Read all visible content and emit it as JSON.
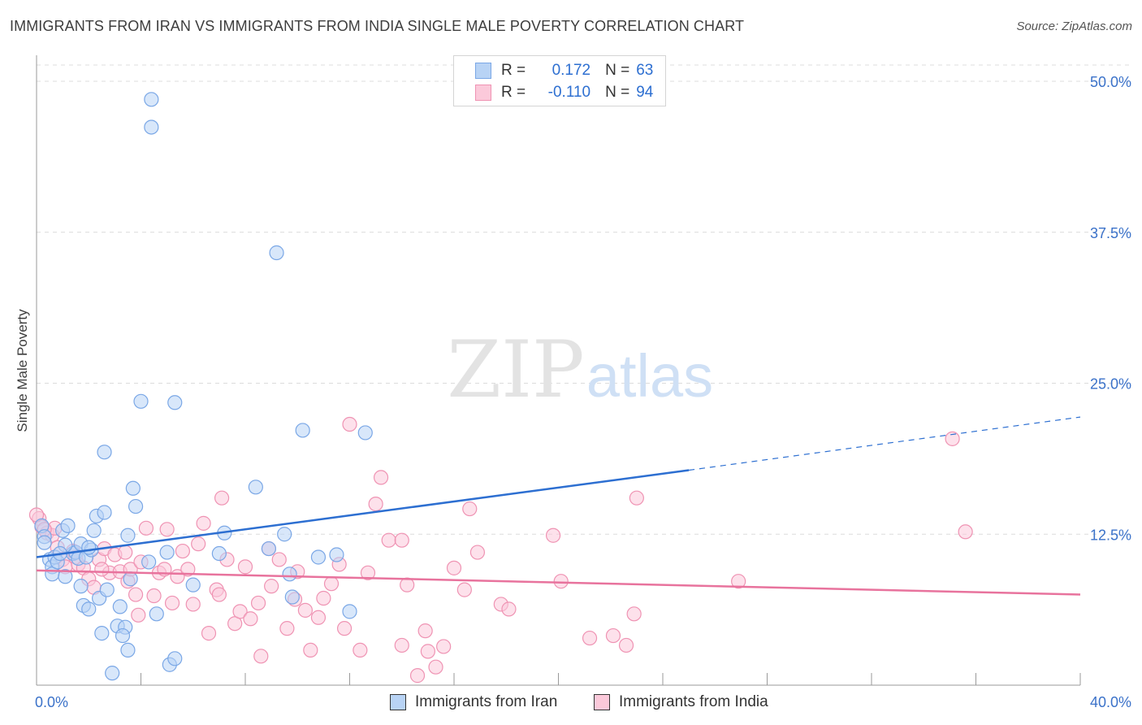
{
  "title": "IMMIGRANTS FROM IRAN VS IMMIGRANTS FROM INDIA SINGLE MALE POVERTY CORRELATION CHART",
  "source": "Source: ZipAtlas.com",
  "watermark": {
    "zip": "ZIP",
    "atlas": "atlas"
  },
  "colors": {
    "iran_fill": "#b8d3f5",
    "iran_stroke": "#7aa7e6",
    "iran_line": "#2d6fd1",
    "india_fill": "#fbc9da",
    "india_stroke": "#ef93b3",
    "india_line": "#e8739d",
    "axis_text": "#3b72c9"
  },
  "legend": {
    "iran": {
      "r_label": "R =",
      "r_value": "0.172",
      "n_label": "N =",
      "n_value": "63"
    },
    "india": {
      "r_label": "R =",
      "r_value": "-0.110",
      "n_label": "N =",
      "n_value": "94"
    }
  },
  "bottom_legend": {
    "iran": "Immigrants from Iran",
    "india": "Immigrants from India"
  },
  "chart_data": {
    "type": "scatter",
    "title": "IMMIGRANTS FROM IRAN VS IMMIGRANTS FROM INDIA SINGLE MALE POVERTY CORRELATION CHART",
    "xlabel": "",
    "ylabel": "Single Male Poverty",
    "xlim": [
      0,
      40
    ],
    "ylim": [
      0,
      50
    ],
    "x_tick_labels": [
      "0.0%",
      "40.0%"
    ],
    "y_ticks": [
      12.5,
      25.0,
      37.5,
      50.0
    ],
    "y_tick_labels": [
      "12.5%",
      "25.0%",
      "37.5%",
      "50.0%"
    ],
    "grid": "horizontal dashed",
    "legend_position": "top-center",
    "series": [
      {
        "name": "Immigrants from Iran",
        "r": 0.172,
        "n": 63,
        "trend": {
          "x0": 0,
          "y0": 10.6,
          "x1": 25,
          "y1": 17.8,
          "dashed_to_x": 40,
          "dashed_to_y": 22.2
        },
        "points": [
          [
            0.2,
            13.2
          ],
          [
            0.3,
            12.3
          ],
          [
            0.3,
            11.8
          ],
          [
            0.5,
            10.4
          ],
          [
            0.6,
            9.8
          ],
          [
            0.6,
            9.2
          ],
          [
            0.7,
            10.6
          ],
          [
            0.8,
            10.2
          ],
          [
            1.0,
            12.8
          ],
          [
            1.1,
            9.0
          ],
          [
            1.2,
            13.2
          ],
          [
            1.4,
            10.9
          ],
          [
            1.5,
            11.0
          ],
          [
            1.6,
            10.5
          ],
          [
            1.7,
            11.7
          ],
          [
            1.7,
            8.2
          ],
          [
            1.8,
            6.6
          ],
          [
            1.9,
            10.6
          ],
          [
            2.0,
            6.3
          ],
          [
            2.1,
            11.2
          ],
          [
            2.2,
            12.8
          ],
          [
            2.3,
            14.0
          ],
          [
            2.4,
            7.2
          ],
          [
            2.5,
            4.3
          ],
          [
            2.6,
            19.3
          ],
          [
            2.6,
            14.3
          ],
          [
            2.0,
            11.4
          ],
          [
            2.9,
            1.0
          ],
          [
            3.1,
            4.9
          ],
          [
            3.2,
            6.5
          ],
          [
            3.4,
            4.8
          ],
          [
            3.5,
            2.9
          ],
          [
            3.5,
            12.4
          ],
          [
            3.6,
            8.8
          ],
          [
            3.7,
            16.3
          ],
          [
            3.8,
            14.8
          ],
          [
            4.0,
            23.5
          ],
          [
            4.3,
            10.2
          ],
          [
            4.4,
            48.5
          ],
          [
            4.6,
            5.9
          ],
          [
            5.0,
            11.0
          ],
          [
            5.1,
            1.7
          ],
          [
            5.3,
            2.2
          ],
          [
            5.3,
            23.4
          ],
          [
            6.0,
            8.3
          ],
          [
            7.0,
            10.9
          ],
          [
            7.2,
            12.6
          ],
          [
            8.4,
            16.4
          ],
          [
            8.9,
            11.3
          ],
          [
            9.2,
            35.8
          ],
          [
            9.5,
            12.5
          ],
          [
            9.7,
            9.2
          ],
          [
            9.8,
            7.3
          ],
          [
            10.2,
            21.1
          ],
          [
            10.8,
            10.6
          ],
          [
            11.5,
            10.8
          ],
          [
            12.0,
            6.1
          ],
          [
            12.6,
            20.9
          ],
          [
            1.1,
            11.6
          ],
          [
            3.3,
            4.1
          ],
          [
            4.4,
            46.2
          ],
          [
            0.9,
            10.9
          ],
          [
            2.7,
            7.9
          ]
        ]
      },
      {
        "name": "Immigrants from India",
        "r": -0.11,
        "n": 94,
        "trend": {
          "x0": 0,
          "y0": 9.5,
          "x1": 40,
          "y1": 7.5
        },
        "points": [
          [
            0.1,
            13.8
          ],
          [
            0.2,
            13.1
          ],
          [
            0.4,
            12.6
          ],
          [
            0.6,
            12.4
          ],
          [
            0.7,
            13.0
          ],
          [
            0.8,
            11.4
          ],
          [
            1.0,
            10.4
          ],
          [
            1.1,
            9.8
          ],
          [
            1.4,
            11.1
          ],
          [
            1.5,
            10.6
          ],
          [
            1.6,
            10.0
          ],
          [
            1.8,
            9.7
          ],
          [
            2.0,
            8.8
          ],
          [
            2.2,
            8.1
          ],
          [
            2.4,
            10.4
          ],
          [
            2.6,
            11.3
          ],
          [
            2.8,
            9.3
          ],
          [
            3.0,
            10.8
          ],
          [
            3.2,
            9.4
          ],
          [
            3.4,
            11.0
          ],
          [
            3.5,
            8.6
          ],
          [
            3.6,
            9.6
          ],
          [
            3.8,
            7.5
          ],
          [
            3.9,
            5.8
          ],
          [
            4.0,
            10.2
          ],
          [
            4.2,
            13.0
          ],
          [
            4.5,
            7.4
          ],
          [
            4.7,
            9.3
          ],
          [
            4.9,
            9.6
          ],
          [
            5.0,
            12.9
          ],
          [
            5.2,
            6.8
          ],
          [
            5.4,
            9.0
          ],
          [
            5.6,
            11.1
          ],
          [
            5.8,
            9.6
          ],
          [
            6.0,
            6.7
          ],
          [
            6.2,
            11.7
          ],
          [
            6.4,
            13.4
          ],
          [
            6.6,
            4.3
          ],
          [
            6.9,
            7.9
          ],
          [
            7.0,
            7.5
          ],
          [
            7.1,
            15.5
          ],
          [
            7.3,
            10.4
          ],
          [
            7.6,
            5.1
          ],
          [
            7.8,
            6.1
          ],
          [
            8.0,
            9.8
          ],
          [
            8.2,
            5.5
          ],
          [
            8.5,
            6.8
          ],
          [
            8.6,
            2.4
          ],
          [
            8.9,
            11.3
          ],
          [
            9.0,
            8.2
          ],
          [
            9.3,
            10.4
          ],
          [
            9.6,
            4.7
          ],
          [
            9.9,
            7.1
          ],
          [
            10.0,
            9.4
          ],
          [
            10.3,
            6.2
          ],
          [
            10.5,
            2.9
          ],
          [
            10.8,
            5.6
          ],
          [
            11.0,
            7.2
          ],
          [
            11.3,
            8.4
          ],
          [
            11.6,
            10.0
          ],
          [
            11.8,
            4.7
          ],
          [
            12.0,
            21.6
          ],
          [
            12.4,
            2.9
          ],
          [
            12.7,
            9.3
          ],
          [
            13.0,
            15.0
          ],
          [
            13.2,
            17.2
          ],
          [
            13.5,
            12.0
          ],
          [
            14.0,
            3.3
          ],
          [
            14.2,
            8.3
          ],
          [
            14.6,
            0.8
          ],
          [
            14.9,
            4.5
          ],
          [
            15.0,
            2.8
          ],
          [
            15.3,
            1.5
          ],
          [
            15.6,
            3.2
          ],
          [
            16.0,
            9.7
          ],
          [
            16.4,
            7.9
          ],
          [
            16.6,
            14.6
          ],
          [
            16.9,
            11.0
          ],
          [
            17.8,
            6.7
          ],
          [
            18.1,
            6.3
          ],
          [
            19.8,
            12.4
          ],
          [
            20.1,
            8.6
          ],
          [
            21.2,
            3.9
          ],
          [
            22.1,
            4.1
          ],
          [
            22.6,
            3.3
          ],
          [
            22.9,
            5.9
          ],
          [
            23.0,
            15.5
          ],
          [
            26.9,
            8.6
          ],
          [
            35.1,
            20.4
          ],
          [
            35.6,
            12.7
          ],
          [
            0.3,
            12.9
          ],
          [
            14.0,
            12.0
          ],
          [
            0.0,
            14.1
          ],
          [
            2.5,
            9.6
          ]
        ]
      }
    ]
  }
}
